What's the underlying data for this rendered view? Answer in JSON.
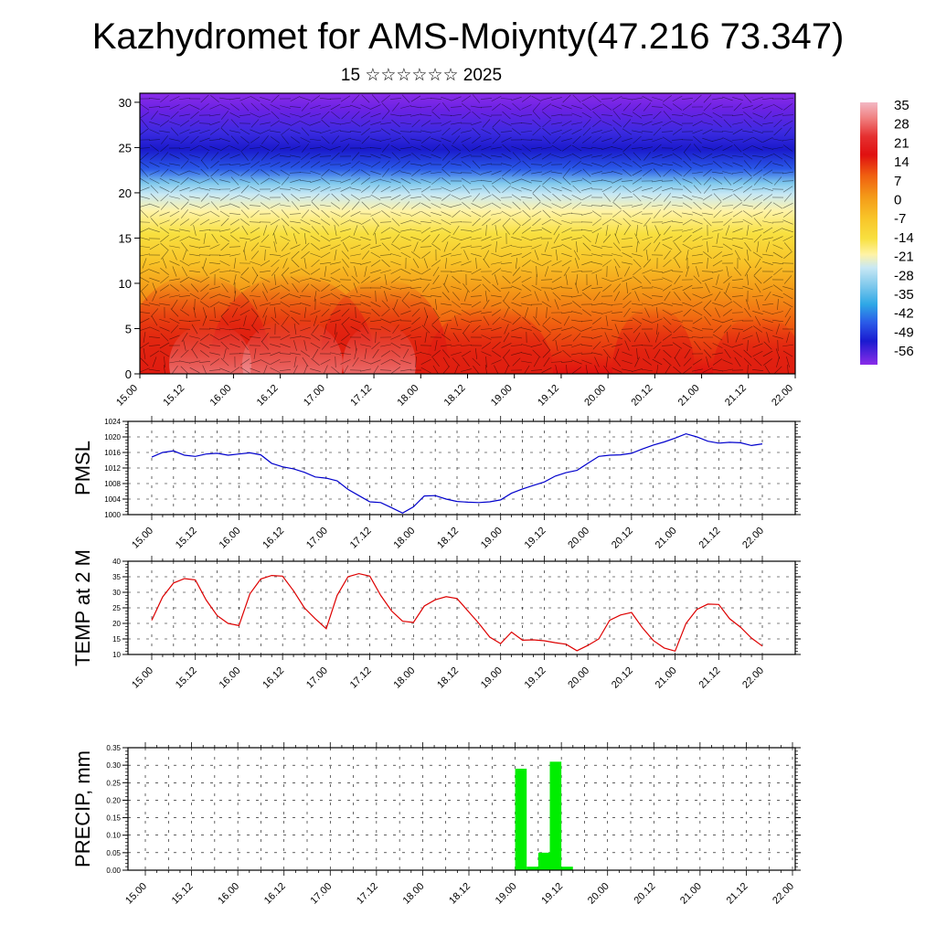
{
  "title": "Kazhydromet for AMS-Moiynty(47.216 73.347)",
  "subtitle": "15 ☆☆☆☆☆☆ 2025",
  "time_labels": [
    "15.00",
    "15.12",
    "16.00",
    "16.12",
    "17.00",
    "17.12",
    "18.00",
    "18.12",
    "19.00",
    "19.12",
    "20.00",
    "20.12",
    "21.00",
    "21.12",
    "22.00"
  ],
  "colors": {
    "pmsl_line": "#0000cc",
    "temp_line": "#dd0000",
    "precip_bar": "#00ee00",
    "frame": "#000000"
  },
  "chart_data": [
    {
      "type": "heatmap",
      "title": "",
      "y_ticks": [
        0,
        5,
        10,
        15,
        20,
        25,
        30
      ],
      "ylim": [
        0,
        31
      ],
      "colorbar_labels": [
        "35",
        "28",
        "21",
        "14",
        "7",
        "0",
        "-7",
        "-14",
        "-21",
        "-28",
        "-35",
        "-42",
        "-49",
        "-56"
      ],
      "colorbar_stops": [
        {
          "value": 38,
          "color": "#f3b8c4"
        },
        {
          "value": 33,
          "color": "#f08080"
        },
        {
          "value": 28,
          "color": "#e53030"
        },
        {
          "value": 22,
          "color": "#e01010"
        },
        {
          "value": 16,
          "color": "#f06010"
        },
        {
          "value": 9,
          "color": "#f49a18"
        },
        {
          "value": 3,
          "color": "#f8c428"
        },
        {
          "value": -4,
          "color": "#f8e040"
        },
        {
          "value": -10,
          "color": "#fff3a6"
        },
        {
          "value": -16,
          "color": "#c8e8f4"
        },
        {
          "value": -23,
          "color": "#7ec8ec"
        },
        {
          "value": -30,
          "color": "#2ea8e6"
        },
        {
          "value": -38,
          "color": "#2a5ae8"
        },
        {
          "value": -46,
          "color": "#1a1ad0"
        },
        {
          "value": -53,
          "color": "#4a20e8"
        },
        {
          "value": -60,
          "color": "#8a2ce8"
        }
      ]
    },
    {
      "type": "line",
      "ylabel": "PMSL",
      "ylim": [
        1000,
        1024
      ],
      "y_ticks": [
        "1000",
        "1004",
        "1008",
        "1012",
        "1016",
        "1020",
        "1024"
      ],
      "x": [
        0,
        3,
        6,
        9,
        12,
        15,
        18,
        21,
        24,
        27,
        30,
        33,
        36,
        39,
        42,
        45,
        48,
        51,
        54,
        57,
        60,
        63,
        66,
        69,
        72,
        75,
        78,
        81,
        84,
        87,
        90,
        93,
        96,
        99,
        102,
        105,
        108,
        111,
        114,
        117,
        120,
        123,
        126,
        129,
        132,
        135,
        138,
        141,
        144,
        147,
        150,
        153,
        156,
        159,
        162,
        165,
        168
      ],
      "series": [
        {
          "values": [
            1014.8,
            1016,
            1016.4,
            1015.3,
            1015,
            1015.6,
            1015.8,
            1015.3,
            1015.6,
            1015.9,
            1015.4,
            1013.2,
            1012.3,
            1011.8,
            1010.9,
            1009.7,
            1009.4,
            1008.7,
            1006.5,
            1004.9,
            1003.3,
            1003.1,
            1001.8,
            1000.4,
            1002,
            1004.8,
            1004.9,
            1004,
            1003.4,
            1003.2,
            1003.1,
            1003.3,
            1003.8,
            1005.5,
            1006.6,
            1007.5,
            1008.4,
            1009.9,
            1010.8,
            1011.4,
            1013.2,
            1015,
            1015.3,
            1015.4,
            1015.8,
            1016.9,
            1017.9,
            1018.7,
            1019.7,
            1020.8,
            1020,
            1018.9,
            1018.4,
            1018.6,
            1018.5,
            1017.8,
            1018.2
          ]
        }
      ]
    },
    {
      "type": "line",
      "ylabel": "TEMP at 2 M",
      "ylim": [
        10,
        40
      ],
      "y_ticks": [
        "10",
        "15",
        "20",
        "25",
        "30",
        "35",
        "40"
      ],
      "x": [
        0,
        3,
        6,
        9,
        12,
        15,
        18,
        21,
        24,
        27,
        30,
        33,
        36,
        39,
        42,
        45,
        48,
        51,
        54,
        57,
        60,
        63,
        66,
        69,
        72,
        75,
        78,
        81,
        84,
        87,
        90,
        93,
        96,
        99,
        102,
        105,
        108,
        111,
        114,
        117,
        120,
        123,
        126,
        129,
        132,
        135,
        138,
        141,
        144,
        147,
        150,
        153,
        156,
        159,
        162,
        165,
        168
      ],
      "series": [
        {
          "values": [
            21,
            28.5,
            33,
            34.4,
            34,
            27.5,
            22.5,
            20,
            19.3,
            29.5,
            34.3,
            35.4,
            35.2,
            30.5,
            25,
            21.5,
            18.3,
            29,
            35,
            36,
            35.2,
            29,
            24,
            20.7,
            20.3,
            25.6,
            27.6,
            28.6,
            28,
            24,
            20,
            15.6,
            13.5,
            17.2,
            14.6,
            14.7,
            14.4,
            13.8,
            13.3,
            11.2,
            12.9,
            15,
            21,
            22.7,
            23.5,
            18.6,
            14.5,
            12.1,
            11.1,
            20,
            24.5,
            26.2,
            26.1,
            21.5,
            18.8,
            15.3,
            12.7
          ]
        }
      ]
    },
    {
      "type": "bar",
      "ylabel": "PRECIP, mm",
      "ylim": [
        0,
        0.35
      ],
      "y_ticks": [
        "0.00",
        "0.05",
        "0.10",
        "0.15",
        "0.20",
        "0.25",
        "0.30",
        "0.35"
      ],
      "bars": [
        {
          "start": 96,
          "end": 99,
          "value": 0.29
        },
        {
          "start": 99,
          "end": 102,
          "value": 0.01
        },
        {
          "start": 102,
          "end": 105,
          "value": 0.05
        },
        {
          "start": 105,
          "end": 108,
          "value": 0.31
        },
        {
          "start": 108,
          "end": 111,
          "value": 0.01
        }
      ]
    }
  ]
}
